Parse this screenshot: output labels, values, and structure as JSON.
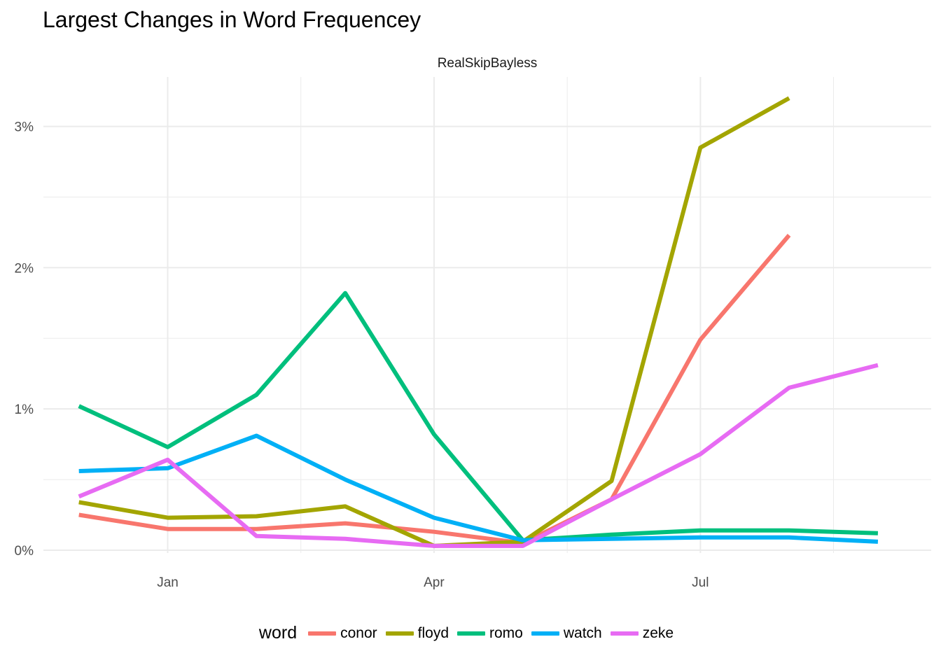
{
  "chart_data": {
    "type": "line",
    "title": "Largest Changes in Word Frequencey",
    "facet": "RealSkipBayless",
    "xlabel": "",
    "ylabel": "",
    "x_ticks": [
      {
        "label": "Jan",
        "t": 2
      },
      {
        "label": "Apr",
        "t": 5
      },
      {
        "label": "Jul",
        "t": 8
      }
    ],
    "x_minor": [
      3.5,
      6.5,
      9.5
    ],
    "xlim": [
      0.6,
      10.6
    ],
    "ylim": [
      -0.0002,
      0.0335
    ],
    "y_ticks": [
      {
        "label": "0%",
        "v": 0
      },
      {
        "label": "1%",
        "v": 0.01
      },
      {
        "label": "2%",
        "v": 0.02
      },
      {
        "label": "3%",
        "v": 0.03
      }
    ],
    "y_minor": [
      0.005,
      0.015,
      0.025
    ],
    "legend_title": "word",
    "series": [
      {
        "name": "conor",
        "color": "#F8766D",
        "x": [
          1,
          2,
          3,
          4,
          5,
          6,
          7,
          8,
          9
        ],
        "values": [
          0.0025,
          0.0015,
          0.0015,
          0.0019,
          0.0013,
          0.0005,
          0.0036,
          0.0149,
          0.0223
        ]
      },
      {
        "name": "floyd",
        "color": "#A3A500",
        "x": [
          1,
          2,
          3,
          4,
          5,
          6,
          7,
          8,
          9
        ],
        "values": [
          0.0034,
          0.0023,
          0.0024,
          0.0031,
          0.0003,
          0.0006,
          0.0049,
          0.0285,
          0.032
        ]
      },
      {
        "name": "romo",
        "color": "#00BF7D",
        "x": [
          1,
          2,
          3,
          4,
          5,
          6,
          7,
          8,
          9,
          10
        ],
        "values": [
          0.0102,
          0.0073,
          0.011,
          0.0182,
          0.0082,
          0.0007,
          0.0011,
          0.0014,
          0.0014,
          0.0012
        ]
      },
      {
        "name": "watch",
        "color": "#00B0F6",
        "x": [
          1,
          2,
          3,
          4,
          5,
          6,
          7,
          8,
          9,
          10
        ],
        "values": [
          0.0056,
          0.0058,
          0.0081,
          0.005,
          0.0023,
          0.0007,
          0.0008,
          0.0009,
          0.0009,
          0.0006
        ]
      },
      {
        "name": "zeke",
        "color": "#E76BF3",
        "x": [
          1,
          2,
          3,
          4,
          5,
          6,
          7,
          8,
          9,
          10
        ],
        "values": [
          0.0038,
          0.0064,
          0.001,
          0.0008,
          0.0003,
          0.0003,
          0.0036,
          0.0068,
          0.0115,
          0.0131
        ]
      }
    ]
  }
}
